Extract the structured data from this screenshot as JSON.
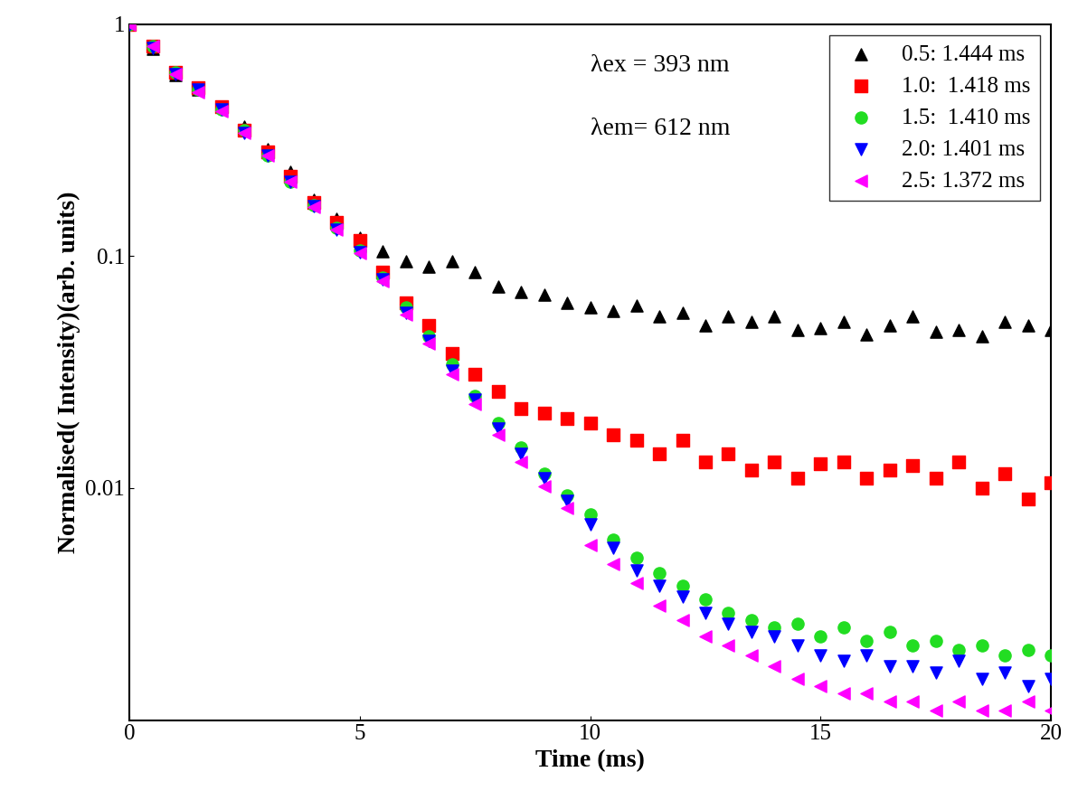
{
  "chart_data": {
    "type": "scatter",
    "xlabel": "Time (ms)",
    "ylabel": "Normalised( Intensity)(arb. units)",
    "annotations": [
      "λex = 393 nm",
      "λem= 612 nm"
    ],
    "log": "y",
    "xlim": [
      0,
      20
    ],
    "xticks": [
      0,
      5,
      10,
      15,
      20
    ],
    "ylim": [
      0.001,
      1
    ],
    "yticks": [
      0.01,
      0.1,
      1
    ],
    "legend": "upper right",
    "x": [
      0,
      0.5,
      1,
      1.5,
      2,
      2.5,
      3,
      3.5,
      4,
      4.5,
      5,
      5.5,
      6,
      6.5,
      7,
      7.5,
      8,
      8.5,
      9,
      9.5,
      10,
      10.5,
      11,
      11.5,
      12,
      12.5,
      13,
      13.5,
      14,
      14.5,
      15,
      15.5,
      16,
      16.5,
      17,
      17.5,
      18,
      18.5,
      19,
      19.5,
      20
    ],
    "series": [
      {
        "name": "0.5: 1.444 ms",
        "color": "#000000",
        "marker": "triangle_up",
        "values": [
          1,
          0.78,
          0.6,
          0.52,
          0.44,
          0.36,
          0.29,
          0.23,
          0.175,
          0.145,
          0.12,
          0.105,
          0.095,
          0.09,
          0.095,
          0.085,
          0.074,
          0.07,
          0.068,
          0.063,
          0.06,
          0.058,
          0.061,
          0.055,
          0.057,
          0.05,
          0.055,
          0.052,
          0.055,
          0.048,
          0.049,
          0.052,
          0.046,
          0.05,
          0.055,
          0.047,
          0.048,
          0.045,
          0.052,
          0.05,
          0.048
        ]
      },
      {
        "name": "1.0:  1.418 ms",
        "color": "#ff0000",
        "marker": "square",
        "values": [
          1,
          0.8,
          0.62,
          0.53,
          0.44,
          0.35,
          0.28,
          0.22,
          0.17,
          0.14,
          0.117,
          0.085,
          0.063,
          0.05,
          0.038,
          0.031,
          0.026,
          0.022,
          0.021,
          0.02,
          0.019,
          0.017,
          0.016,
          0.014,
          0.016,
          0.013,
          0.014,
          0.012,
          0.013,
          0.011,
          0.0127,
          0.013,
          0.011,
          0.012,
          0.0125,
          0.011,
          0.013,
          0.01,
          0.0115,
          0.009,
          0.0105
        ]
      },
      {
        "name": "1.5:  1.410 ms",
        "color": "#22dd22",
        "marker": "circle",
        "values": [
          1,
          0.8,
          0.62,
          0.52,
          0.43,
          0.35,
          0.27,
          0.21,
          0.166,
          0.132,
          0.106,
          0.081,
          0.06,
          0.045,
          0.034,
          0.025,
          0.019,
          0.015,
          0.0115,
          0.0093,
          0.0077,
          0.006,
          0.005,
          0.0043,
          0.0038,
          0.0033,
          0.0029,
          0.0027,
          0.0025,
          0.0026,
          0.0023,
          0.0025,
          0.0022,
          0.0024,
          0.0021,
          0.0022,
          0.002,
          0.0021,
          0.0019,
          0.002,
          0.0019
        ]
      },
      {
        "name": "2.0: 1.401 ms",
        "color": "#0000ff",
        "marker": "triangle_down",
        "values": [
          1,
          0.79,
          0.61,
          0.52,
          0.43,
          0.34,
          0.27,
          0.21,
          0.164,
          0.13,
          0.104,
          0.079,
          0.057,
          0.043,
          0.032,
          0.024,
          0.018,
          0.014,
          0.011,
          0.0088,
          0.007,
          0.0055,
          0.0044,
          0.0038,
          0.0034,
          0.0029,
          0.0026,
          0.0024,
          0.0023,
          0.0021,
          0.0019,
          0.0018,
          0.0019,
          0.0017,
          0.0017,
          0.0016,
          0.0018,
          0.0015,
          0.0016,
          0.0014,
          0.0015
        ]
      },
      {
        "name": "2.5: 1.372 ms",
        "color": "#ff00ff",
        "marker": "triangle_left",
        "values": [
          1,
          0.8,
          0.61,
          0.51,
          0.42,
          0.34,
          0.27,
          0.21,
          0.163,
          0.13,
          0.103,
          0.078,
          0.056,
          0.042,
          0.031,
          0.023,
          0.017,
          0.013,
          0.0102,
          0.0082,
          0.0057,
          0.0047,
          0.0039,
          0.0031,
          0.0027,
          0.0023,
          0.0021,
          0.0019,
          0.0017,
          0.0015,
          0.0014,
          0.0013,
          0.0013,
          0.0012,
          0.0012,
          0.0011,
          0.0012,
          0.0011,
          0.0011,
          0.0012,
          0.0011
        ]
      }
    ]
  }
}
